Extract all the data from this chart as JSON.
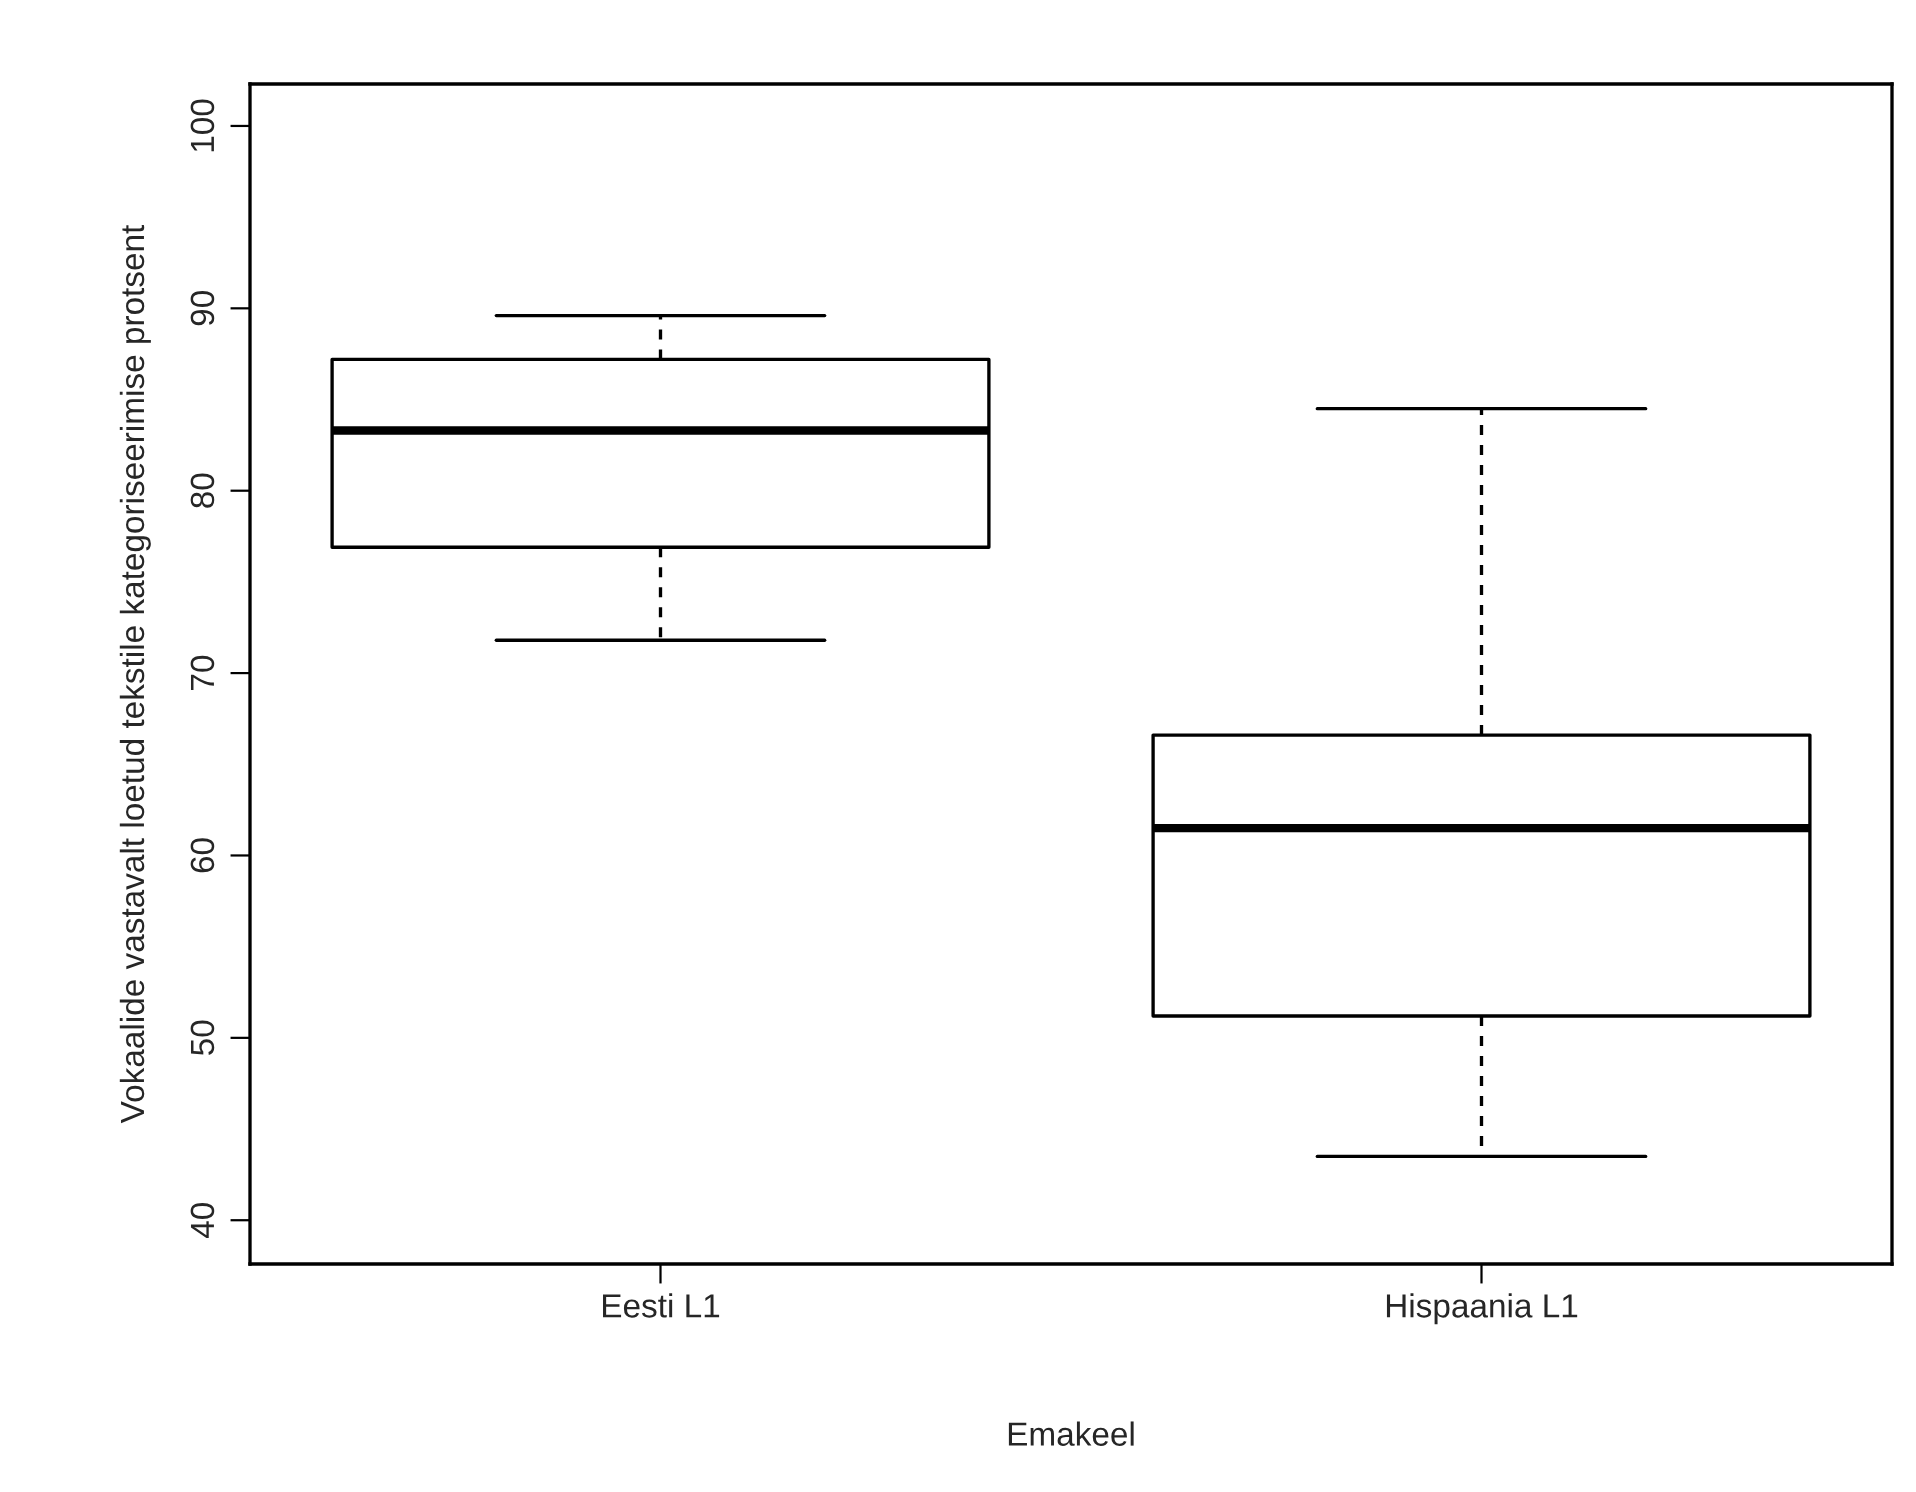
{
  "chart_data": {
    "type": "box",
    "xlabel": "Emakeel",
    "ylabel": "Vokaalide vastavalt loetud tekstile kategoriseerimise protsent",
    "categories": [
      "Eesti L1",
      "Hispaania L1"
    ],
    "boxes": [
      {
        "low": 71.8,
        "q1": 76.9,
        "median": 83.3,
        "q3": 87.2,
        "high": 89.6
      },
      {
        "low": 43.5,
        "q1": 51.2,
        "median": 61.5,
        "q3": 66.6,
        "high": 84.5
      }
    ],
    "ylim": [
      37.6,
      102.3
    ],
    "yticks": [
      40,
      50,
      60,
      70,
      80,
      90,
      100
    ],
    "grid": false
  }
}
